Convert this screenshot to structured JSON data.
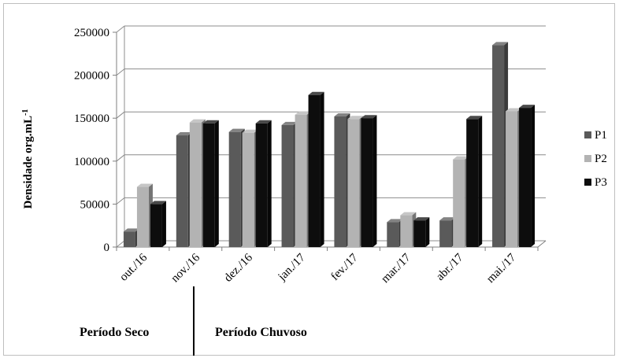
{
  "chart_data": {
    "type": "bar",
    "ylabel": "Densidade org.mL",
    "ylabel_sup": "-1",
    "categories": [
      "out./16",
      "nov./16",
      "dez./16",
      "jan./17",
      "fev./17",
      "mar./17",
      "abr./17",
      "mai./17"
    ],
    "series": [
      {
        "name": "P1",
        "color": "#5a5a5a",
        "values": [
          18000,
          130000,
          134000,
          142000,
          152000,
          29000,
          31000,
          235000
        ]
      },
      {
        "name": "P2",
        "color": "#b3b3b3",
        "values": [
          70000,
          145000,
          133000,
          154000,
          149000,
          37000,
          102000,
          158000
        ]
      },
      {
        "name": "P3",
        "color": "#0d0d0d",
        "values": [
          50000,
          144000,
          144000,
          177000,
          150000,
          31000,
          149000,
          162000
        ]
      }
    ],
    "ylim": [
      0,
      250000
    ],
    "yticks": [
      0,
      50000,
      100000,
      150000,
      200000,
      250000
    ],
    "grid": true,
    "legend_position": "right",
    "periods": [
      {
        "label": "Período Seco"
      },
      {
        "label": "Período Chuvoso"
      }
    ]
  }
}
